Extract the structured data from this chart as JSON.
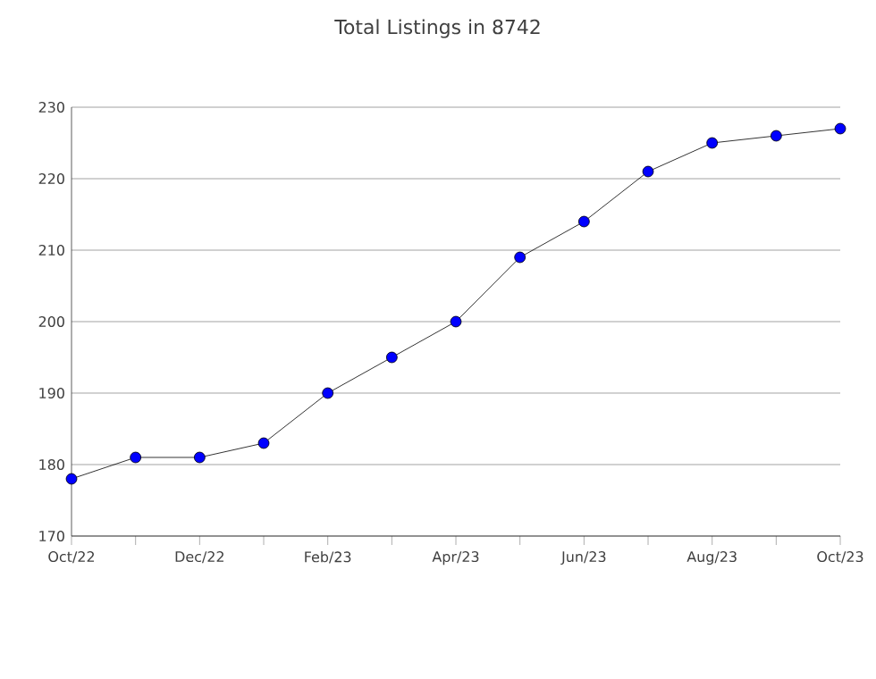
{
  "chart_data": {
    "type": "line",
    "title": "Total Listings in 8742",
    "categories": [
      "Oct/22",
      null,
      "Dec/22",
      null,
      "Feb/23",
      null,
      "Apr/23",
      null,
      "Jun/23",
      null,
      "Aug/23",
      null,
      "Oct/23"
    ],
    "series": [
      {
        "color": "#0000ff",
        "values": [
          178,
          181,
          181,
          183,
          190,
          195,
          200,
          209,
          214,
          221,
          225,
          226,
          227
        ]
      }
    ],
    "ylim": [
      170,
      230
    ],
    "yticks": [
      170,
      180,
      190,
      200,
      210,
      220,
      230
    ],
    "grid": "y",
    "marker": "circle",
    "line_style": "solid"
  }
}
